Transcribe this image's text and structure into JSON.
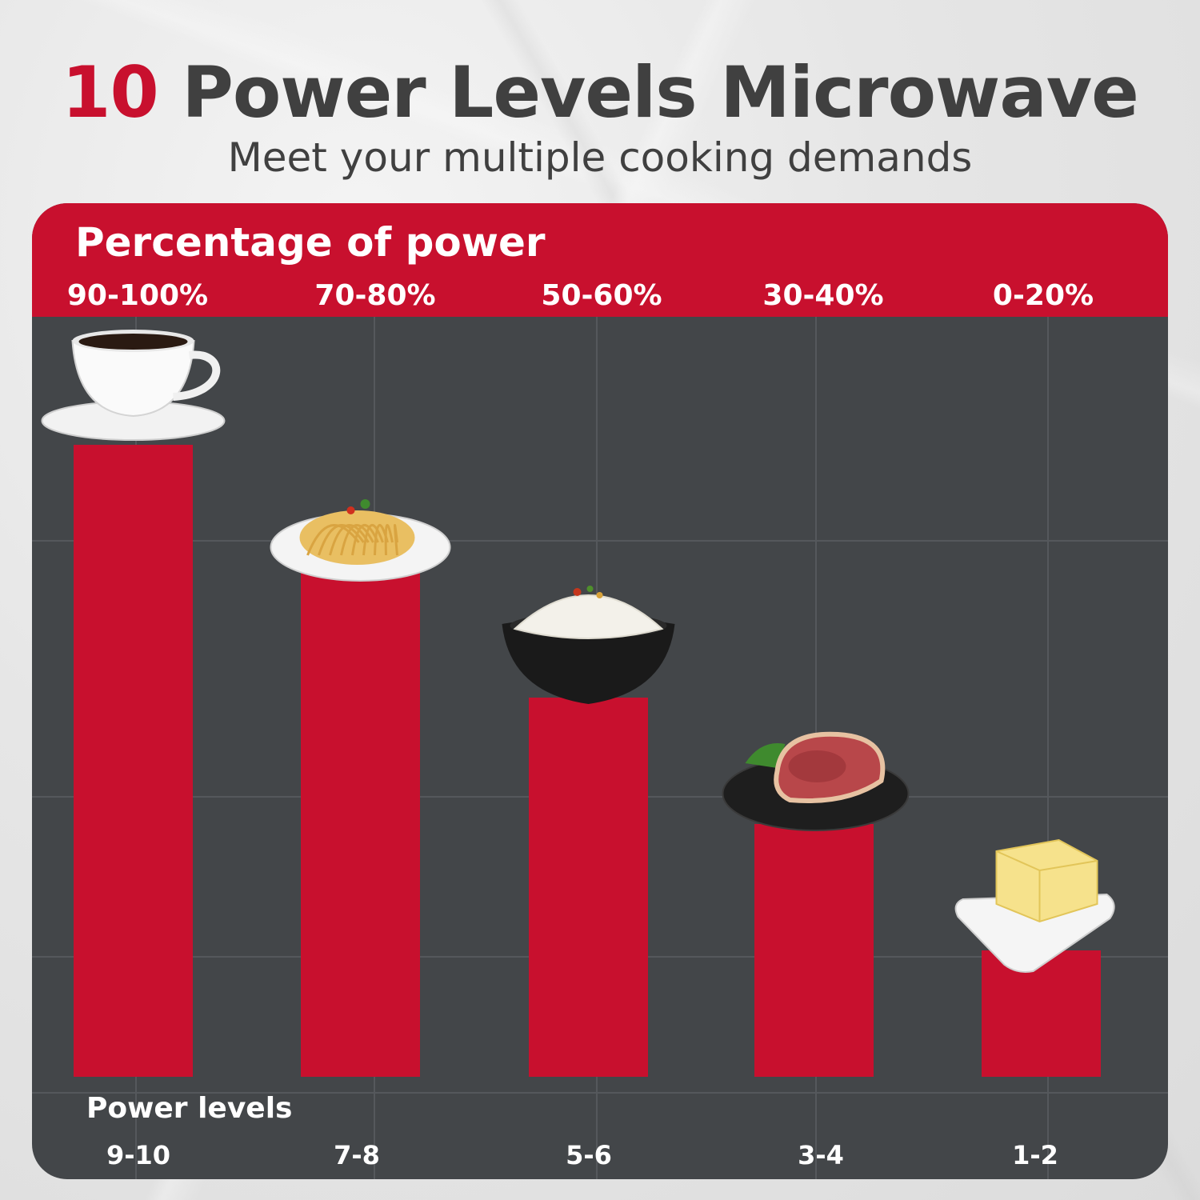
{
  "header": {
    "title_accent": "10",
    "title_rest": " Power Levels Microwave",
    "subtitle": "Meet your multiple cooking demands"
  },
  "chart_data": {
    "type": "bar",
    "title": "Percentage of power",
    "xlabel": "Power levels",
    "categories": [
      "9-10",
      "7-8",
      "5-6",
      "3-4",
      "1-2"
    ],
    "percent_labels": [
      "90-100%",
      "70-80%",
      "50-60%",
      "30-40%",
      "0-20%"
    ],
    "values": [
      100,
      80,
      60,
      40,
      20
    ],
    "ylim": [
      0,
      100
    ],
    "grid": true,
    "bar_color": "#c8102e",
    "icons": [
      "coffee-cup-icon",
      "spaghetti-plate-icon",
      "rice-bowl-icon",
      "steak-plate-icon",
      "butter-dish-icon"
    ]
  },
  "colors": {
    "accent": "#c8102e",
    "panel": "#434649",
    "text": "#404040"
  }
}
